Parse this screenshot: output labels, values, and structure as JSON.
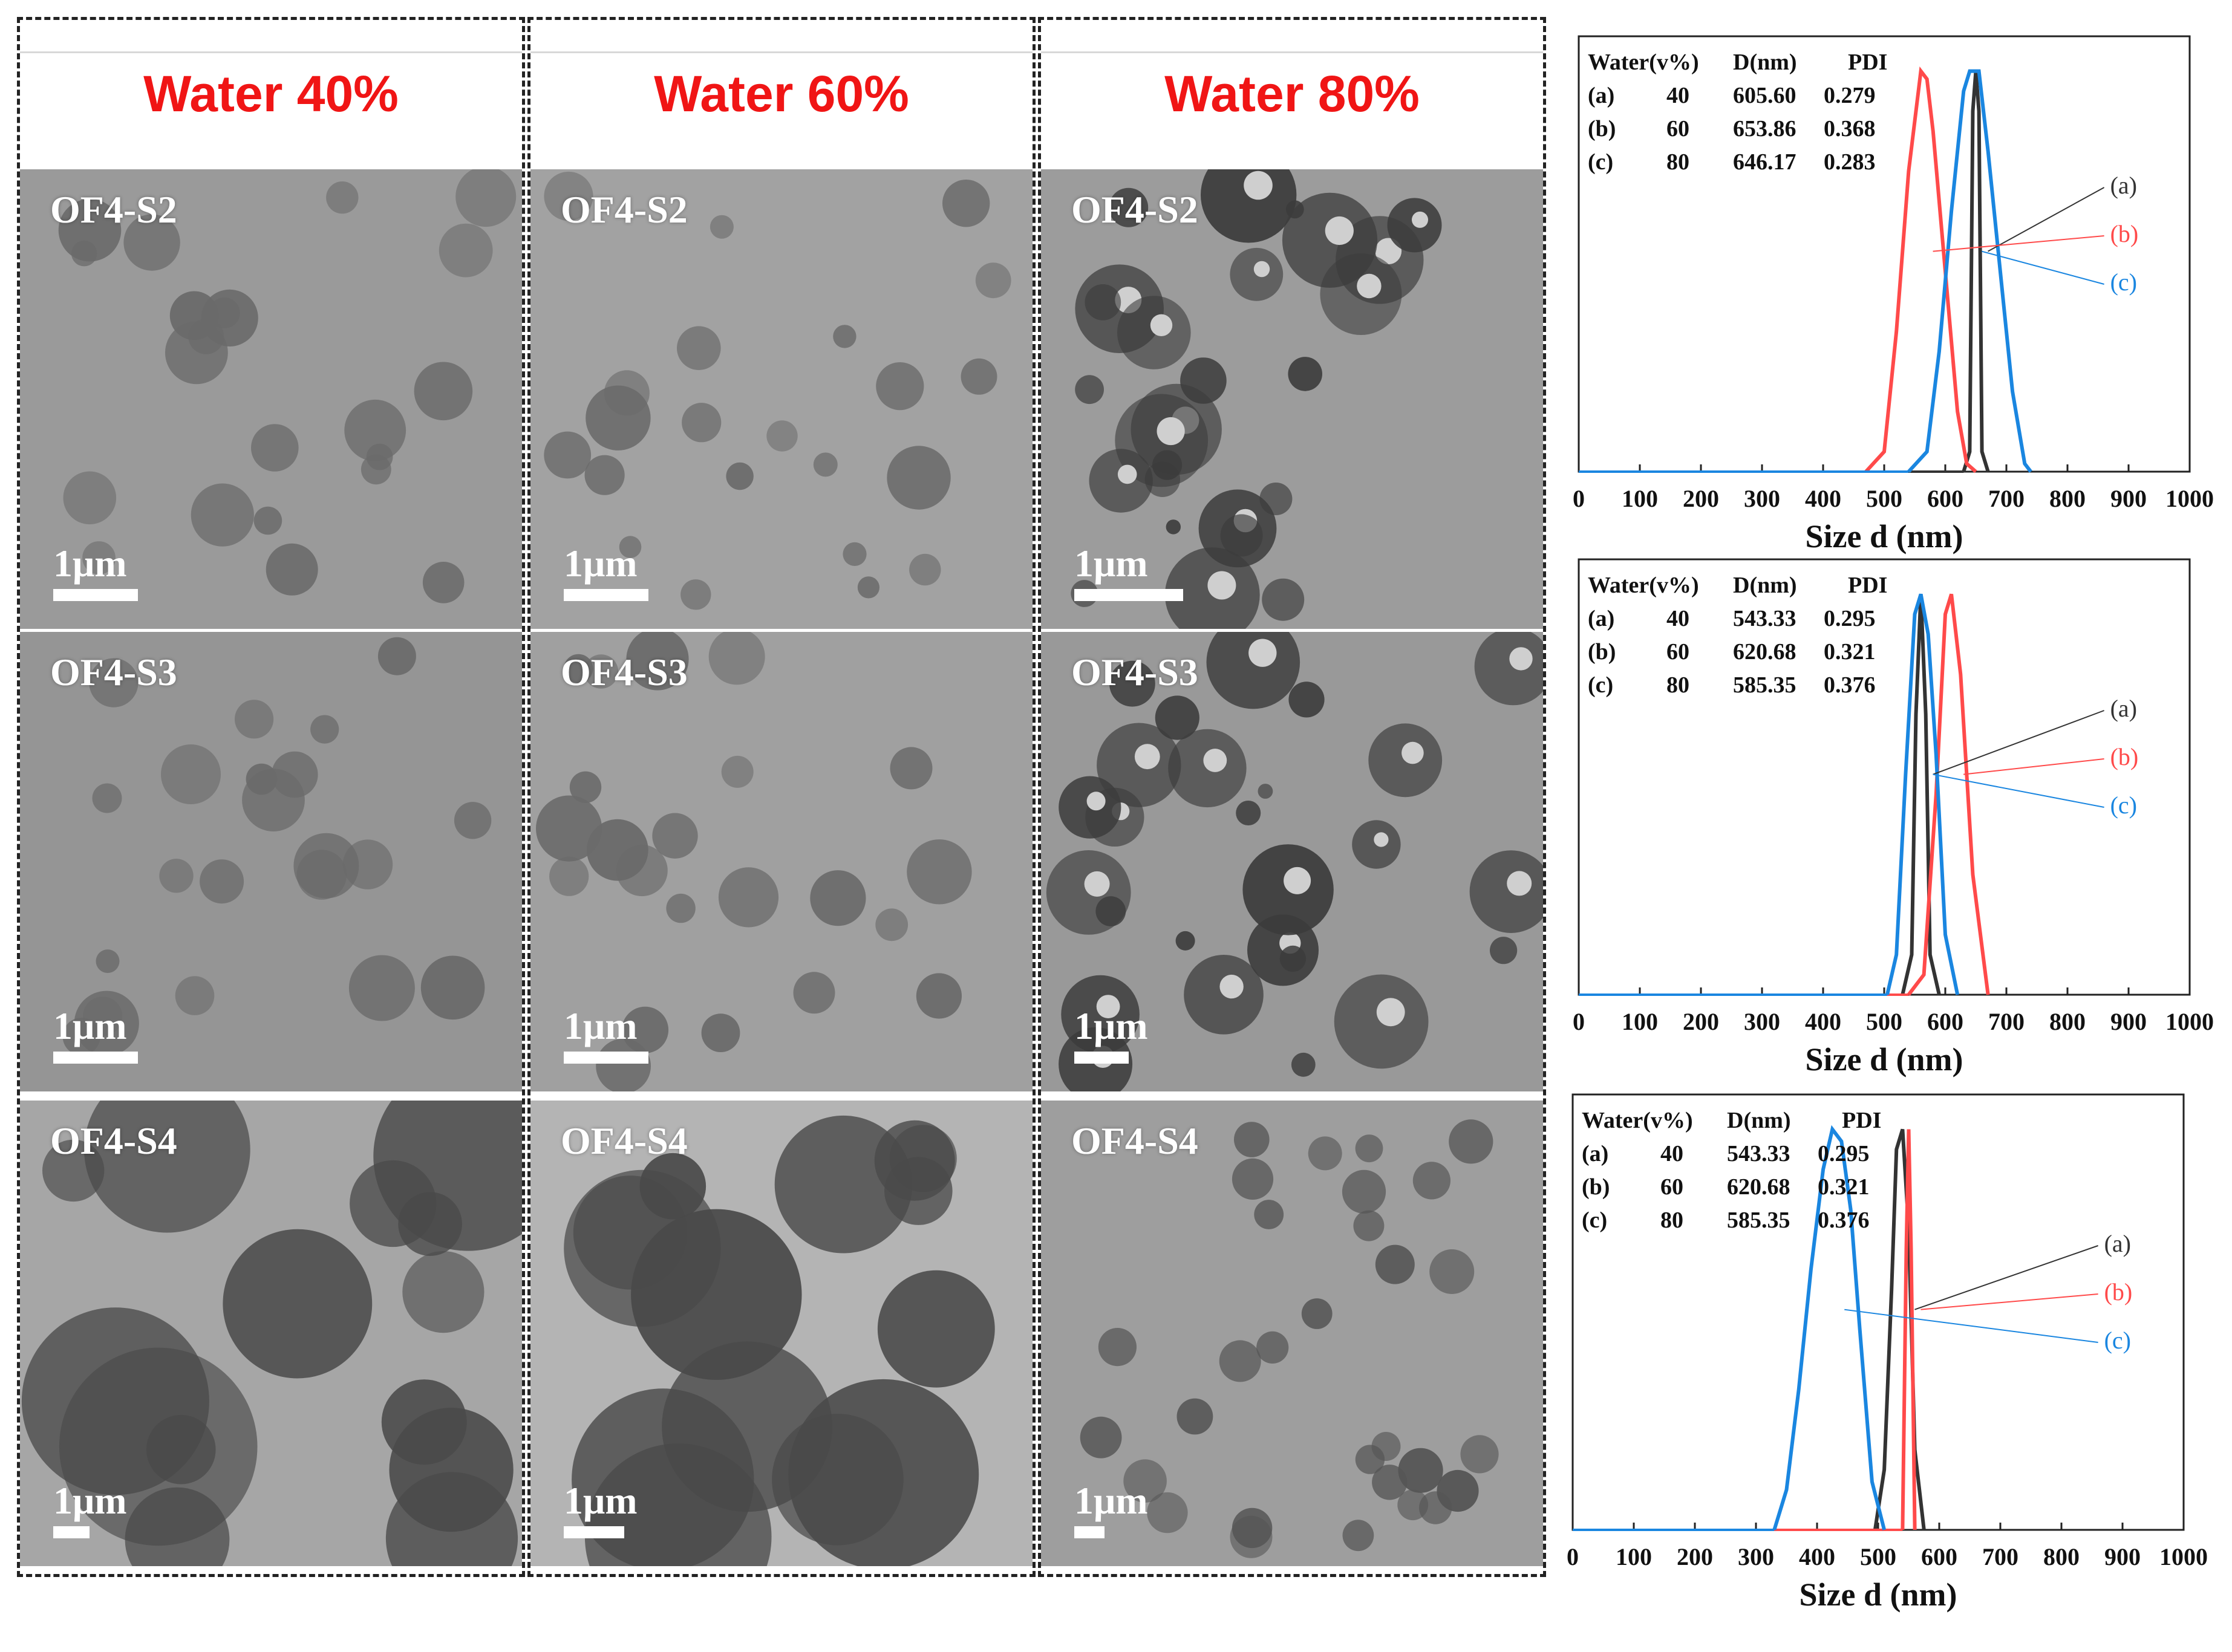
{
  "columns": [
    {
      "header": "Water 40%"
    },
    {
      "header": "Water 60%"
    },
    {
      "header": "Water 80%"
    }
  ],
  "tem_panels": [
    {
      "sample": "OF4-S2",
      "scale": "1μm",
      "tone": "#9a9a9a"
    },
    {
      "sample": "OF4-S2",
      "scale": "1μm",
      "tone": "#a2a2a2"
    },
    {
      "sample": "OF4-S2",
      "scale": "1μm",
      "tone": "#9c9c9c"
    },
    {
      "sample": "OF4-S3",
      "scale": "1μm",
      "tone": "#959595"
    },
    {
      "sample": "OF4-S3",
      "scale": "1μm",
      "tone": "#a0a0a0"
    },
    {
      "sample": "OF4-S3",
      "scale": "1μm",
      "tone": "#999999"
    },
    {
      "sample": "OF4-S4",
      "scale": "1μm",
      "tone": "#a6a6a6"
    },
    {
      "sample": "OF4-S4",
      "scale": "1μm",
      "tone": "#b4b4b4"
    },
    {
      "sample": "OF4-S4",
      "scale": "1μm",
      "tone": "#9e9e9e"
    }
  ],
  "chart_data": [
    {
      "type": "line",
      "xlabel": "Size d (nm)",
      "xlim": [
        0,
        1000
      ],
      "x_ticks": [
        "0",
        "100",
        "200",
        "300",
        "400",
        "500",
        "600",
        "700",
        "800",
        "900",
        "1000"
      ],
      "table_header": [
        "Water(v%)",
        "D(nm)",
        "PDI"
      ],
      "table_rows": [
        [
          "(a)",
          "40",
          "605.60",
          "0.279"
        ],
        [
          "(b)",
          "60",
          "653.86",
          "0.368"
        ],
        [
          "(c)",
          "80",
          "646.17",
          "0.283"
        ]
      ],
      "series": [
        {
          "name": "(a)",
          "color": "#333333",
          "x": [
            630,
            640,
            645,
            650,
            655,
            660,
            670
          ],
          "y": [
            0,
            0.05,
            0.9,
            1.0,
            0.9,
            0.05,
            0
          ]
        },
        {
          "name": "(b)",
          "color": "#ff4a4a",
          "x": [
            470,
            500,
            520,
            540,
            560,
            570,
            580,
            600,
            620,
            635,
            650
          ],
          "y": [
            0,
            0.05,
            0.35,
            0.75,
            1.0,
            0.98,
            0.85,
            0.5,
            0.15,
            0.02,
            0
          ]
        },
        {
          "name": "(c)",
          "color": "#1a86e0",
          "x": [
            540,
            570,
            590,
            610,
            630,
            640,
            655,
            670,
            690,
            710,
            730,
            740
          ],
          "y": [
            0,
            0.05,
            0.3,
            0.65,
            0.95,
            1.0,
            1.0,
            0.8,
            0.5,
            0.2,
            0.02,
            0
          ]
        }
      ]
    },
    {
      "type": "line",
      "xlabel": "Size d (nm)",
      "xlim": [
        0,
        1000
      ],
      "x_ticks": [
        "0",
        "100",
        "200",
        "300",
        "400",
        "500",
        "600",
        "700",
        "800",
        "900",
        "1000"
      ],
      "table_header": [
        "Water(v%)",
        "D(nm)",
        "PDI"
      ],
      "table_rows": [
        [
          "(a)",
          "40",
          "543.33",
          "0.295"
        ],
        [
          "(b)",
          "60",
          "620.68",
          "0.321"
        ],
        [
          "(c)",
          "80",
          "585.35",
          "0.376"
        ]
      ],
      "series": [
        {
          "name": "(a)",
          "color": "#333333",
          "x": [
            530,
            545,
            552,
            560,
            568,
            575,
            590
          ],
          "y": [
            0,
            0.1,
            0.7,
            1.0,
            0.7,
            0.1,
            0
          ]
        },
        {
          "name": "(b)",
          "color": "#ff4a4a",
          "x": [
            540,
            565,
            585,
            600,
            610,
            625,
            645,
            670
          ],
          "y": [
            0,
            0.05,
            0.5,
            0.95,
            1.0,
            0.8,
            0.3,
            0
          ]
        },
        {
          "name": "(c)",
          "color": "#1a86e0",
          "x": [
            505,
            520,
            535,
            550,
            560,
            572,
            585,
            600,
            620
          ],
          "y": [
            0,
            0.1,
            0.55,
            0.95,
            1.0,
            0.9,
            0.6,
            0.15,
            0
          ]
        }
      ]
    },
    {
      "type": "line",
      "xlabel": "Size d (nm)",
      "xlim": [
        0,
        1000
      ],
      "x_ticks": [
        "0",
        "100",
        "200",
        "300",
        "400",
        "500",
        "600",
        "700",
        "800",
        "900",
        "1000"
      ],
      "table_header": [
        "Water(v%)",
        "D(nm)",
        "PDI"
      ],
      "table_rows": [
        [
          "(a)",
          "40",
          "543.33",
          "0.295"
        ],
        [
          "(b)",
          "60",
          "620.68",
          "0.321"
        ],
        [
          "(c)",
          "80",
          "585.35",
          "0.376"
        ]
      ],
      "series": [
        {
          "name": "(a)",
          "color": "#333333",
          "x": [
            495,
            510,
            522,
            530,
            540,
            550,
            560,
            575
          ],
          "y": [
            0,
            0.15,
            0.6,
            0.95,
            1.0,
            0.75,
            0.2,
            0
          ]
        },
        {
          "name": "(b)",
          "color": "#ff4a4a",
          "x": [
            540,
            546,
            550,
            554,
            560
          ],
          "y": [
            0,
            0.7,
            1.0,
            0.7,
            0
          ]
        },
        {
          "name": "(c)",
          "color": "#1a86e0",
          "x": [
            330,
            350,
            370,
            390,
            410,
            425,
            440,
            455,
            470,
            490,
            510
          ],
          "y": [
            0,
            0.1,
            0.35,
            0.65,
            0.9,
            1.0,
            0.97,
            0.8,
            0.5,
            0.12,
            0
          ]
        }
      ]
    }
  ]
}
